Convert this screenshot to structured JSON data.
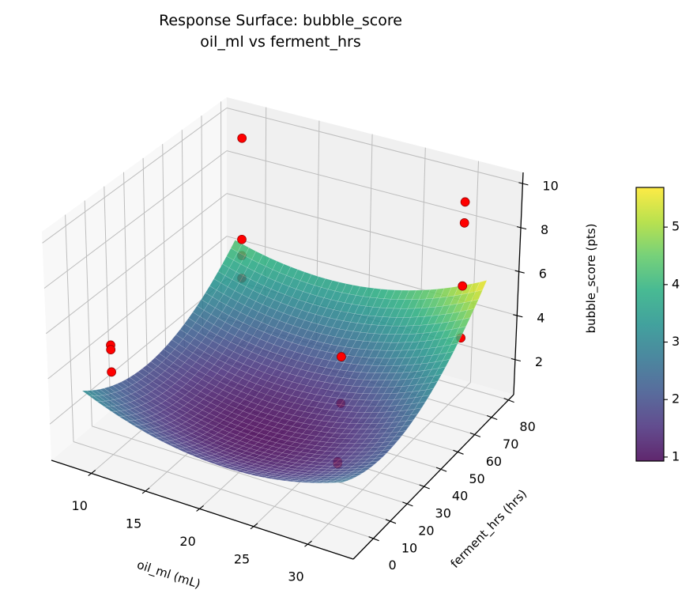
{
  "chart_data": {
    "type": "surface3d",
    "title": [
      "Response Surface: bubble_score",
      "oil_ml vs ferment_hrs"
    ],
    "xlabel": "oil_ml (mL)",
    "ylabel": "ferment_hrs (hrs)",
    "zlabel": "bubble_score (pts)",
    "xlim": [
      6.3,
      34.2
    ],
    "ylim": [
      -12,
      83
    ],
    "zlim": [
      0.4,
      10.5
    ],
    "xticks": [
      "10",
      "15",
      "20",
      "25",
      "30"
    ],
    "yticks": [
      "0",
      "10",
      "20",
      "30",
      "40",
      "50",
      "60",
      "70",
      "80"
    ],
    "zticks": [
      "2",
      "4",
      "6",
      "8",
      "10"
    ],
    "grid": true,
    "colormap": "viridis",
    "surface_alpha": 0.85,
    "surface": {
      "x": [
        8,
        14,
        20,
        26,
        32
      ],
      "y": [
        -4,
        16.5,
        37,
        57.5,
        78
      ],
      "z": [
        [
          3.2,
          2.2,
          1.81,
          2.0,
          2.8
        ],
        [
          2.19,
          1.3,
          1.01,
          1.31,
          2.21
        ],
        [
          2.05,
          1.27,
          1.08,
          1.49,
          2.5
        ],
        [
          2.79,
          2.11,
          2.03,
          2.55,
          3.66
        ],
        [
          4.4,
          3.83,
          3.85,
          4.47,
          5.69
        ]
      ]
    },
    "points": {
      "color": "#ff0000",
      "edge_color": "#8b0000",
      "x": [
        9,
        9,
        9,
        9,
        9,
        9,
        9,
        23,
        23,
        27,
        27,
        31,
        31,
        31,
        31
      ],
      "y": [
        76,
        76,
        76,
        76,
        6,
        6,
        6,
        50,
        50,
        24,
        24,
        70,
        70,
        70,
        70
      ],
      "z": [
        9.4,
        4.7,
        3.95,
        2.9,
        4.7,
        4.5,
        3.5,
        3.1,
        1.0,
        0.9,
        0.8,
        9.7,
        8.75,
        5.9,
        3.55
      ]
    },
    "colorbar": {
      "range": [
        0.93,
        5.69
      ],
      "ticks": [
        "1",
        "2",
        "3",
        "4",
        "5"
      ]
    }
  }
}
